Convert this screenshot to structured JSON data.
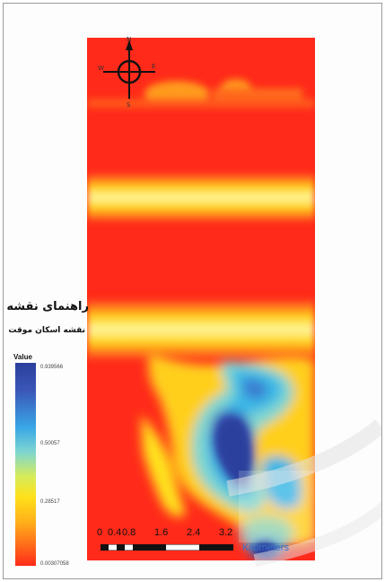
{
  "legend": {
    "title": "راهنمای نقشه",
    "layer_name": "نقشه اسکان موقت",
    "field_label": "Value",
    "high_label": "0.939566",
    "mid_label": "0.50057",
    "low_mid_label": "0.28517",
    "low_label": "0.00307058",
    "ramp_colors": [
      "#2c3f9c",
      "#3aa8e6",
      "#ffe11a",
      "#ff2a1a"
    ]
  },
  "north_arrow": {
    "north": "N",
    "south": "S",
    "east": "E",
    "west": "W"
  },
  "scale_bar": {
    "ticks": [
      "0",
      "0.4",
      "0.8",
      "1.6",
      "2.4",
      "3.2"
    ],
    "units": "Kilometers"
  },
  "colors": {
    "red": "#ff2a1a",
    "orange": "#ff8a1a",
    "yellow": "#ffe11a",
    "cyan": "#3ab8e6",
    "blue": "#3a58b8",
    "frame": "#9a9a9a"
  }
}
